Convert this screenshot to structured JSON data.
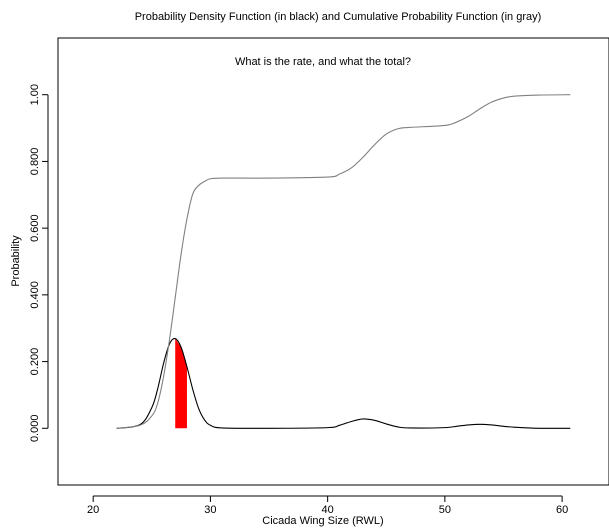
{
  "chart_data": {
    "type": "line",
    "title": "Probability Density Function (in black) and Cumulative Probability Function (in gray)",
    "annotation": "What is the rate, and what the total?",
    "xlabel": "Cicada Wing Size (RWL)",
    "ylabel": "Probability",
    "xlim": [
      17,
      64
    ],
    "ylim": [
      -0.17,
      1.17
    ],
    "x_ticks": [
      {
        "value": 20,
        "label": "20"
      },
      {
        "value": 30,
        "label": "30"
      },
      {
        "value": 40,
        "label": "40"
      },
      {
        "value": 50,
        "label": "50"
      },
      {
        "value": 60,
        "label": "60"
      }
    ],
    "y_ticks": [
      {
        "value": 0.0,
        "label": "0.000"
      },
      {
        "value": 0.2,
        "label": "0.200"
      },
      {
        "value": 0.4,
        "label": "0.400"
      },
      {
        "value": 0.6,
        "label": "0.600"
      },
      {
        "value": 0.8,
        "label": "0.800"
      },
      {
        "value": 1.0,
        "label": "1.00"
      }
    ],
    "grid": false,
    "series": [
      {
        "color": "#000000",
        "x": [
          22,
          24,
          25,
          25.5,
          26,
          26.5,
          27,
          27.5,
          28,
          28.5,
          29,
          29.5,
          30,
          31,
          35,
          40,
          41,
          42,
          43,
          44,
          45,
          46,
          47,
          50,
          51,
          52,
          53,
          54,
          55,
          56,
          58,
          60.7
        ],
        "y": [
          0.0,
          0.011,
          0.062,
          0.118,
          0.194,
          0.252,
          0.269,
          0.243,
          0.184,
          0.116,
          0.059,
          0.025,
          0.009,
          0.001,
          0.0,
          0.002,
          0.009,
          0.02,
          0.028,
          0.024,
          0.013,
          0.004,
          0.001,
          0.002,
          0.006,
          0.01,
          0.012,
          0.01,
          0.006,
          0.003,
          0.0,
          0.0
        ]
      },
      {
        "color": "#808080",
        "x": [
          22,
          24,
          25,
          25.5,
          26,
          26.5,
          27,
          27.5,
          28,
          28.5,
          29,
          29.5,
          30,
          31,
          35,
          40,
          41,
          42,
          43,
          44,
          45,
          46,
          47,
          50,
          51,
          52,
          53,
          54,
          55,
          56,
          58,
          60.7
        ],
        "y": [
          0.0,
          0.009,
          0.037,
          0.075,
          0.154,
          0.263,
          0.392,
          0.522,
          0.628,
          0.703,
          0.728,
          0.74,
          0.748,
          0.75,
          0.75,
          0.753,
          0.762,
          0.78,
          0.812,
          0.85,
          0.882,
          0.898,
          0.902,
          0.908,
          0.918,
          0.935,
          0.958,
          0.978,
          0.99,
          0.996,
          0.999,
          1.0
        ]
      }
    ],
    "shaded_region": {
      "x_from": 27.0,
      "x_to": 28.0,
      "color": "#ff0000"
    }
  }
}
